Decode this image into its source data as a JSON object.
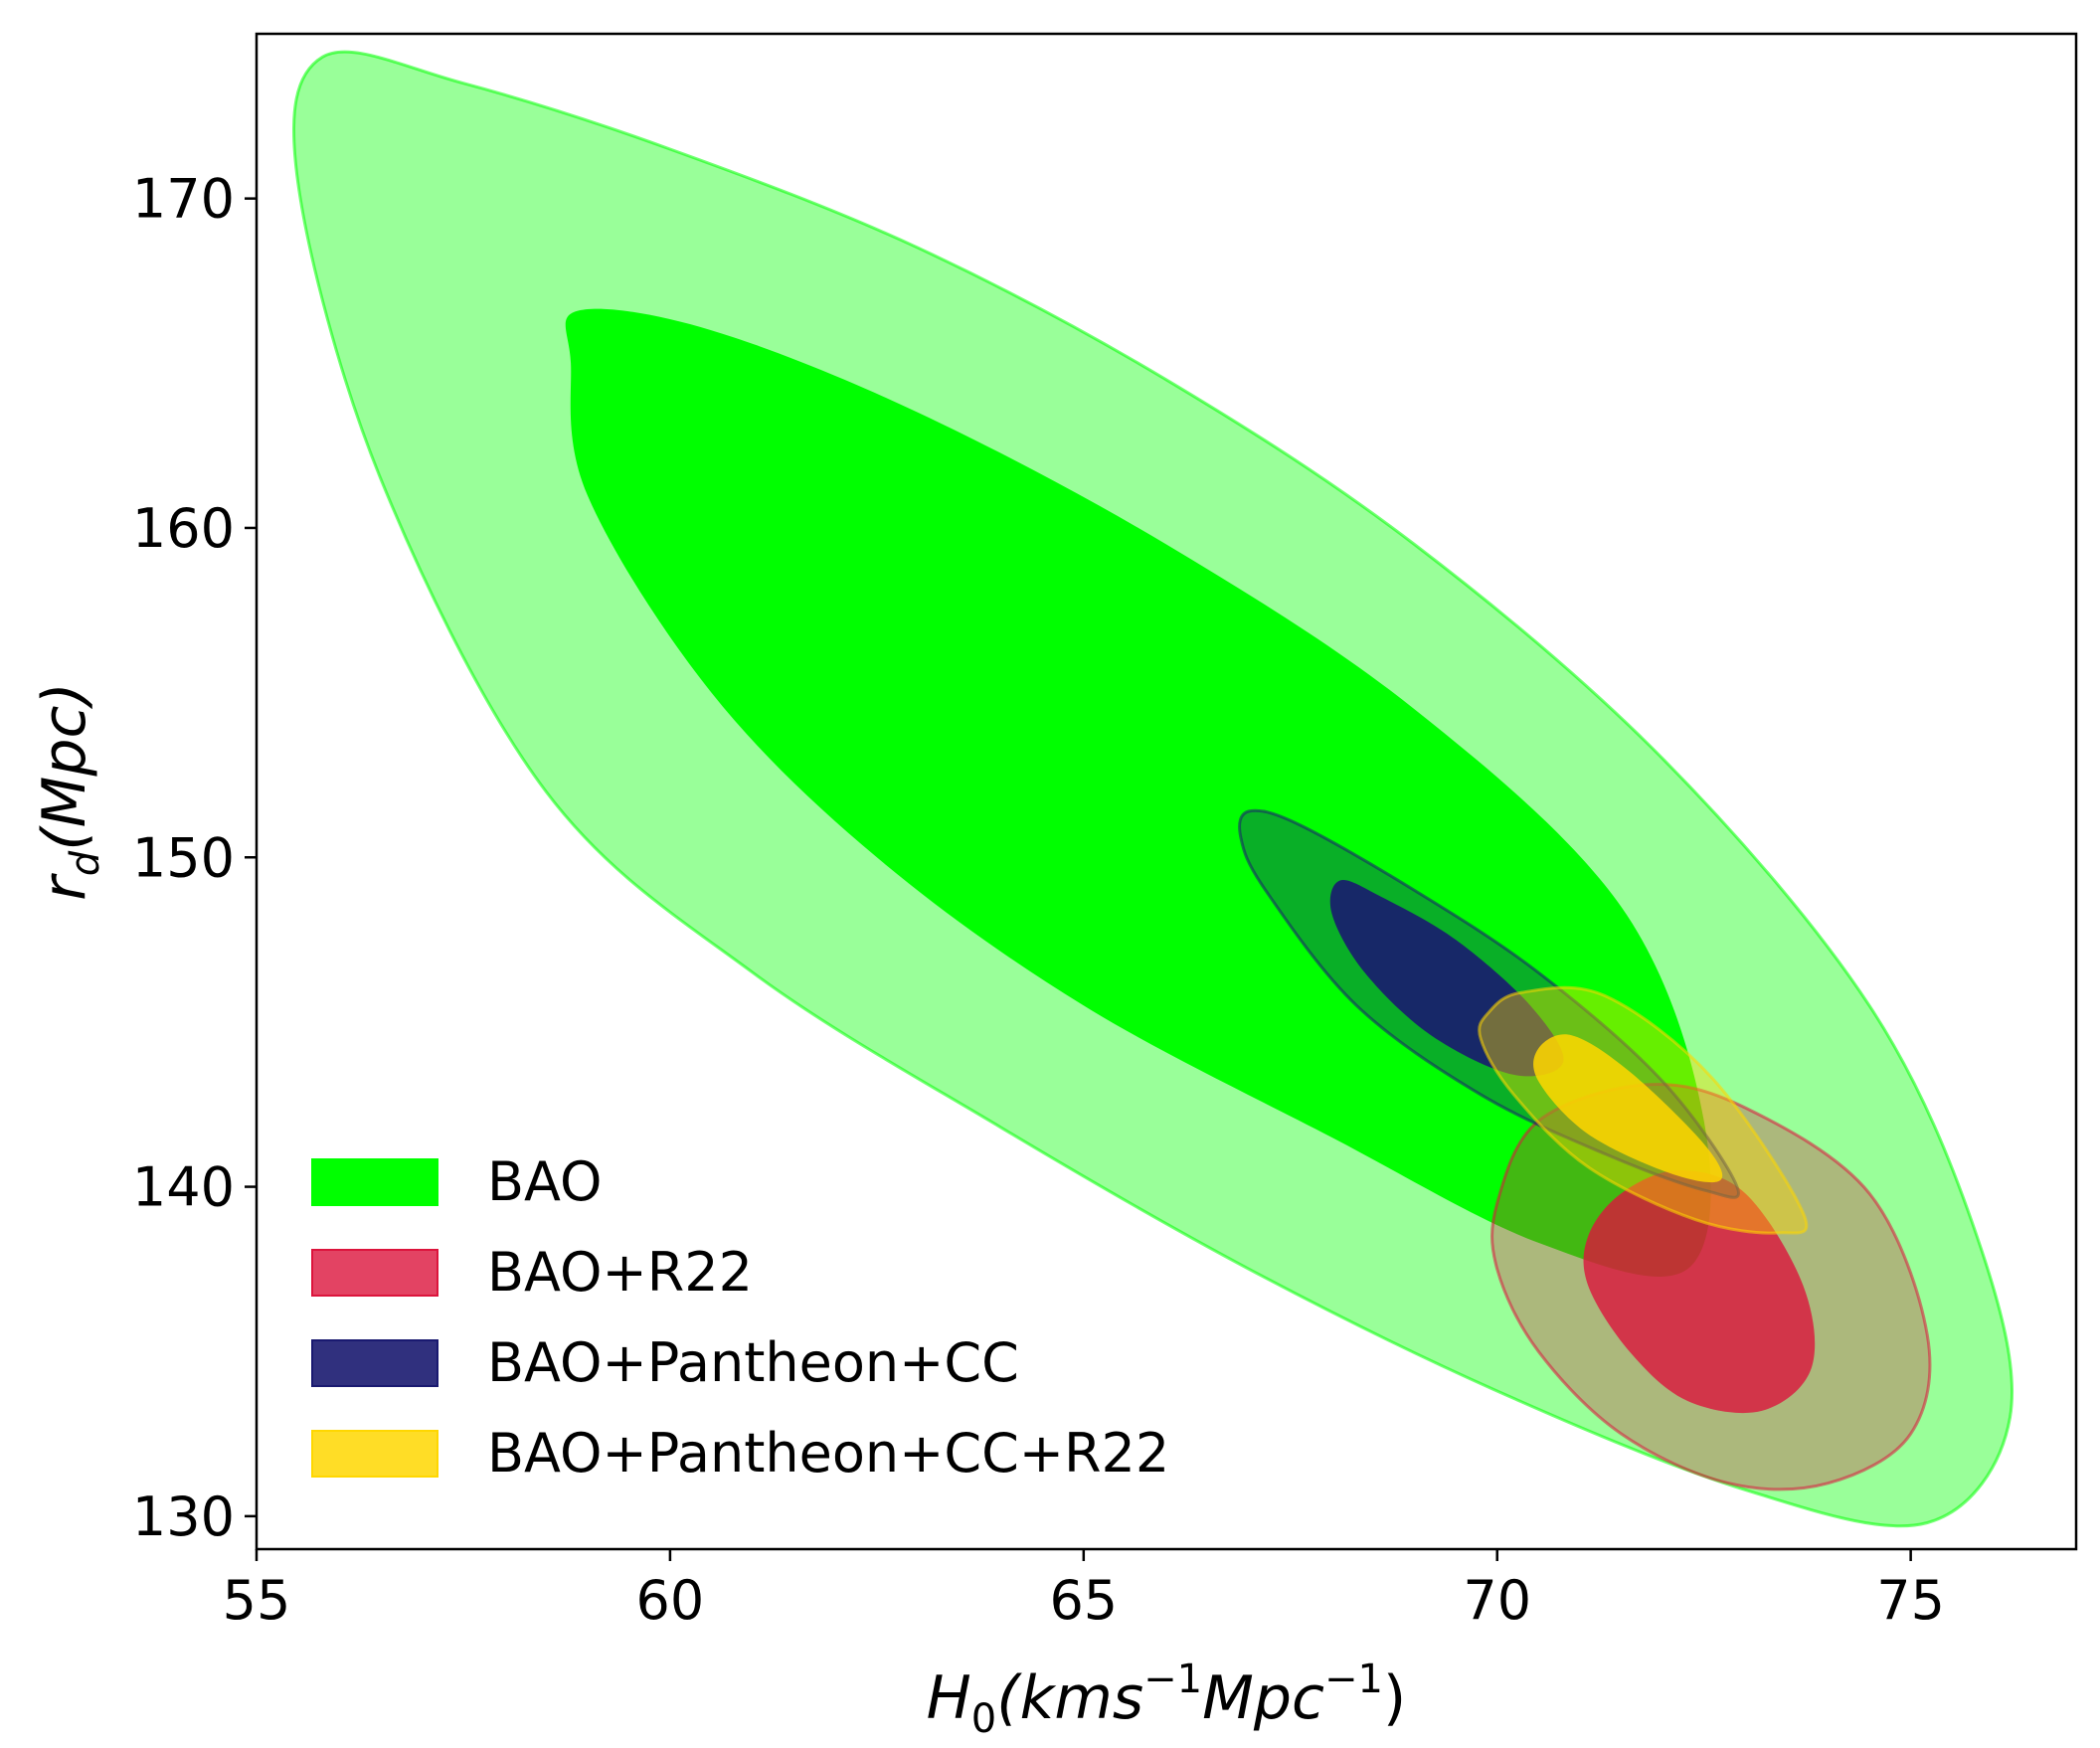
{
  "chart_data": {
    "type": "contour",
    "xlabel": {
      "main": "H",
      "sub": "0",
      "rest": "(kms",
      "sup1": "−1",
      "mid": "Mpc",
      "sup2": "−1",
      "end": ")"
    },
    "ylabel": {
      "main": "r",
      "sub": "d",
      "rest": "(Mpc)"
    },
    "xlim": [
      55,
      77
    ],
    "ylim": [
      129,
      175
    ],
    "xticks": [
      55,
      60,
      65,
      70,
      75
    ],
    "yticks": [
      130,
      140,
      150,
      160,
      170
    ],
    "legend_position": "lower-left",
    "series": [
      {
        "name": "BAO",
        "color": "#00ff00",
        "fill_opacity_1sigma": 1.0,
        "fill_opacity_2sigma": 0.4,
        "center": [
          65.9,
          152.4
        ],
        "contours": [
          {
            "level": "2sigma",
            "points": [
              [
                55.8,
                174.3
              ],
              [
                57.5,
                173.5
              ],
              [
                60,
                171.5
              ],
              [
                63,
                168.5
              ],
              [
                66,
                164.5
              ],
              [
                69,
                159.5
              ],
              [
                72,
                153
              ],
              [
                74.5,
                145.5
              ],
              [
                75.8,
                138.5
              ],
              [
                76.2,
                133
              ],
              [
                75.2,
                129.8
              ],
              [
                73,
                130.8
              ],
              [
                70,
                133.8
              ],
              [
                67,
                137.5
              ],
              [
                64,
                141.8
              ],
              [
                61,
                146.5
              ],
              [
                58.5,
                152
              ],
              [
                56.5,
                161.5
              ],
              [
                55.5,
                170.5
              ]
            ]
          },
          {
            "level": "1sigma",
            "points": [
              [
                58.9,
                166.6
              ],
              [
                60.5,
                166
              ],
              [
                63,
                163.5
              ],
              [
                66,
                159.5
              ],
              [
                69,
                154.5
              ],
              [
                71.5,
                148.5
              ],
              [
                72.5,
                142
              ],
              [
                72.3,
                137.5
              ],
              [
                70.5,
                138.3
              ],
              [
                68,
                141.5
              ],
              [
                65,
                145.5
              ],
              [
                62.5,
                150
              ],
              [
                60.5,
                155
              ],
              [
                59,
                161
              ],
              [
                58.8,
                165
              ]
            ]
          }
        ]
      },
      {
        "name": "BAO+R22",
        "color": "#dc143c",
        "fill_opacity_1sigma": 0.8,
        "fill_opacity_2sigma": 0.3,
        "center": [
          72.7,
          136.2
        ],
        "contours": [
          {
            "level": "2sigma",
            "points": [
              [
                70,
                139.5
              ],
              [
                70.5,
                142
              ],
              [
                71.8,
                143.1
              ],
              [
                73,
                142.4
              ],
              [
                74.5,
                139.8
              ],
              [
                75.2,
                135.5
              ],
              [
                75,
                132.5
              ],
              [
                74,
                131
              ],
              [
                72.8,
                131
              ],
              [
                71.5,
                132.5
              ],
              [
                70.5,
                135
              ],
              [
                70,
                137.5
              ]
            ]
          },
          {
            "level": "1sigma",
            "points": [
              [
                71.1,
                138.5
              ],
              [
                71.5,
                139.8
              ],
              [
                72.2,
                140.5
              ],
              [
                73,
                139.8
              ],
              [
                73.7,
                137
              ],
              [
                73.8,
                134.5
              ],
              [
                73.2,
                133.2
              ],
              [
                72.3,
                133.5
              ],
              [
                71.6,
                135
              ],
              [
                71.1,
                137
              ]
            ]
          }
        ]
      },
      {
        "name": "BAO+Pantheon+CC",
        "color": "#191970",
        "fill_opacity_1sigma": 0.9,
        "fill_opacity_2sigma": 0.35,
        "center": [
          69.9,
          145.7
        ],
        "contours": [
          {
            "level": "2sigma",
            "points": [
              [
                67,
                151.4
              ],
              [
                67.6,
                151
              ],
              [
                69,
                149
              ],
              [
                70.5,
                146.5
              ],
              [
                72,
                143.2
              ],
              [
                72.9,
                140
              ],
              [
                72.5,
                139.9
              ],
              [
                71.3,
                141
              ],
              [
                69.8,
                142.8
              ],
              [
                68.3,
                145.5
              ],
              [
                67.2,
                149
              ],
              [
                66.9,
                150.6
              ]
            ]
          },
          {
            "level": "1sigma",
            "points": [
              [
                68.1,
                149.3
              ],
              [
                68.6,
                148.8
              ],
              [
                69.5,
                147.5
              ],
              [
                70.4,
                145.5
              ],
              [
                70.8,
                143.8
              ],
              [
                70.2,
                143.4
              ],
              [
                69.2,
                144.6
              ],
              [
                68.4,
                146.5
              ],
              [
                68,
                148.3
              ]
            ]
          }
        ]
      },
      {
        "name": "BAO+Pantheon+CC+R22",
        "color": "#ffd700",
        "fill_opacity_1sigma": 0.85,
        "fill_opacity_2sigma": 0.4,
        "center": [
          71.6,
          142.1
        ],
        "contours": [
          {
            "level": "2sigma",
            "points": [
              [
                69.9,
                145.3
              ],
              [
                70.3,
                145.9
              ],
              [
                71.3,
                145.8
              ],
              [
                72.6,
                143.3
              ],
              [
                73.7,
                139.2
              ],
              [
                73.4,
                138.6
              ],
              [
                72.4,
                139
              ],
              [
                71.1,
                140.6
              ],
              [
                70.2,
                142.8
              ],
              [
                69.8,
                144.5
              ]
            ]
          },
          {
            "level": "1sigma",
            "points": [
              [
                70.5,
                144.2
              ],
              [
                70.9,
                144.6
              ],
              [
                71.6,
                143.5
              ],
              [
                72.5,
                141.3
              ],
              [
                72.7,
                140.2
              ],
              [
                72.1,
                140.4
              ],
              [
                71.1,
                141.6
              ],
              [
                70.5,
                143.2
              ]
            ]
          }
        ]
      }
    ]
  }
}
